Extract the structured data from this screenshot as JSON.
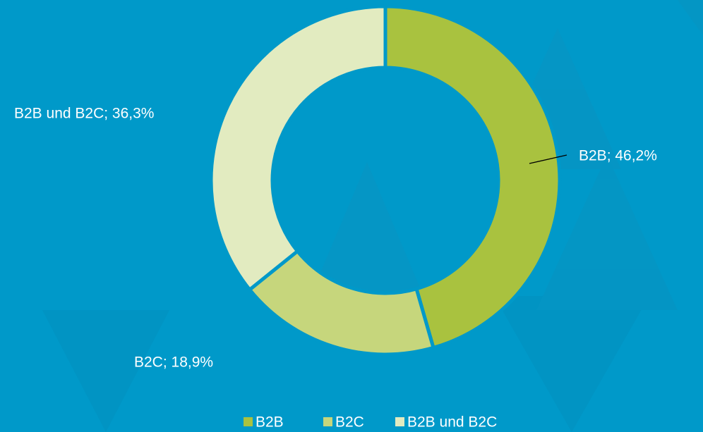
{
  "chart_data": {
    "type": "donut",
    "categories": [
      "B2B",
      "B2C",
      "B2B und B2C"
    ],
    "values": [
      46.2,
      18.9,
      36.3
    ],
    "value_labels": [
      "B2B; 46,2%",
      "B2C; 18,9%",
      "B2B und B2C; 36,3%"
    ],
    "colors": [
      "#a9c23f",
      "#c6d67c",
      "#e2ebc0"
    ],
    "legend": "bottom"
  }
}
